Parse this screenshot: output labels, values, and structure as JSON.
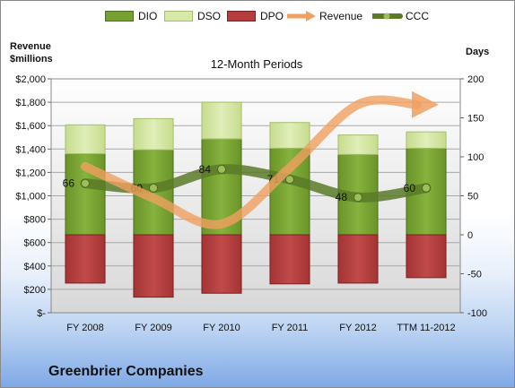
{
  "chart_data": {
    "type": "bar",
    "title": "12-Month Periods",
    "ylabel_left": "Revenue $millions",
    "ylabel_right": "Days",
    "categories": [
      "FY 2008",
      "FY 2009",
      "FY 2010",
      "FY 2011",
      "FY 2012",
      "TTM 11-2012"
    ],
    "y_left": {
      "min": 0,
      "max": 2000,
      "step": 200,
      "ticks": [
        "$-",
        "$200",
        "$400",
        "$600",
        "$800",
        "$1,000",
        "$1,200",
        "$1,400",
        "$1,600",
        "$1,800",
        "$2,000"
      ]
    },
    "y_right": {
      "min": -100,
      "max": 200,
      "step": 50,
      "ticks": [
        "-100",
        "-50",
        "0",
        "50",
        "100",
        "150",
        "200"
      ]
    },
    "series": [
      {
        "name": "DIO",
        "kind": "stacked-bar",
        "color": "#77a033",
        "bottoms": [
          0,
          0,
          0,
          0,
          0,
          0
        ],
        "tops": [
          104,
          109,
          123,
          111,
          103,
          111
        ]
      },
      {
        "name": "DSO",
        "kind": "stacked-bar",
        "color": "#d7e8a8",
        "bottoms": [
          104,
          109,
          123,
          111,
          103,
          111
        ],
        "tops": [
          141,
          149,
          170,
          144,
          128,
          132
        ]
      },
      {
        "name": "DPO",
        "kind": "stacked-bar",
        "color": "#b53d3d",
        "bottoms": [
          -62,
          -80,
          -75,
          -63,
          -62,
          -55
        ],
        "tops": [
          0,
          0,
          0,
          0,
          0,
          0
        ]
      },
      {
        "name": "Revenue",
        "kind": "line",
        "color": "#f0a060",
        "values": [
          1250,
          980,
          760,
          1240,
          1780,
          1780
        ]
      },
      {
        "name": "CCC",
        "kind": "line",
        "color": "#5a7a28",
        "values": [
          66,
          60,
          84,
          71,
          48,
          60
        ],
        "labels": [
          "66",
          "60",
          "84",
          "71",
          "48",
          "60"
        ]
      }
    ],
    "legend_position": "top",
    "grid": true
  },
  "company_name": "Greenbrier Companies"
}
